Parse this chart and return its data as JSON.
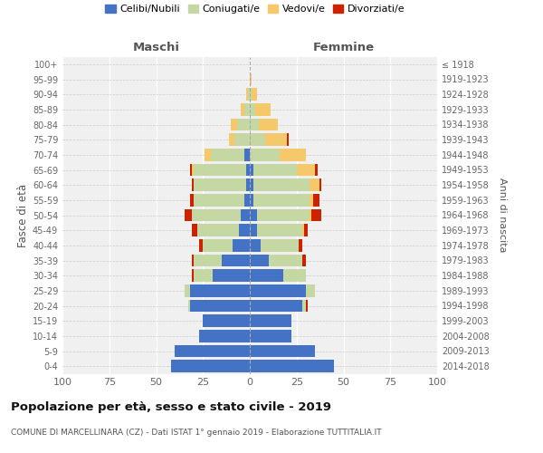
{
  "age_groups": [
    "0-4",
    "5-9",
    "10-14",
    "15-19",
    "20-24",
    "25-29",
    "30-34",
    "35-39",
    "40-44",
    "45-49",
    "50-54",
    "55-59",
    "60-64",
    "65-69",
    "70-74",
    "75-79",
    "80-84",
    "85-89",
    "90-94",
    "95-99",
    "100+"
  ],
  "birth_years": [
    "2014-2018",
    "2009-2013",
    "2004-2008",
    "1999-2003",
    "1994-1998",
    "1989-1993",
    "1984-1988",
    "1979-1983",
    "1974-1978",
    "1969-1973",
    "1964-1968",
    "1959-1963",
    "1954-1958",
    "1949-1953",
    "1944-1948",
    "1939-1943",
    "1934-1938",
    "1929-1933",
    "1924-1928",
    "1919-1923",
    "≤ 1918"
  ],
  "maschi": {
    "celibi": [
      42,
      40,
      27,
      25,
      32,
      32,
      20,
      15,
      9,
      6,
      5,
      3,
      2,
      2,
      3,
      0,
      0,
      0,
      0,
      0,
      0
    ],
    "coniugati": [
      0,
      0,
      0,
      0,
      1,
      3,
      10,
      15,
      16,
      22,
      26,
      27,
      28,
      28,
      18,
      8,
      7,
      3,
      1,
      0,
      0
    ],
    "vedovi": [
      0,
      0,
      0,
      0,
      0,
      0,
      0,
      0,
      0,
      0,
      0,
      0,
      0,
      1,
      3,
      3,
      3,
      2,
      1,
      0,
      0
    ],
    "divorziati": [
      0,
      0,
      0,
      0,
      0,
      0,
      1,
      1,
      2,
      3,
      4,
      2,
      1,
      1,
      0,
      0,
      0,
      0,
      0,
      0,
      0
    ]
  },
  "femmine": {
    "nubili": [
      45,
      35,
      22,
      22,
      28,
      30,
      18,
      10,
      6,
      4,
      4,
      2,
      2,
      2,
      0,
      0,
      0,
      0,
      0,
      0,
      0
    ],
    "coniugate": [
      0,
      0,
      0,
      0,
      2,
      5,
      12,
      18,
      20,
      24,
      28,
      30,
      30,
      23,
      16,
      8,
      5,
      3,
      1,
      0,
      0
    ],
    "vedove": [
      0,
      0,
      0,
      0,
      0,
      0,
      0,
      0,
      0,
      1,
      1,
      2,
      5,
      10,
      14,
      12,
      10,
      8,
      3,
      1,
      0
    ],
    "divorziate": [
      0,
      0,
      0,
      0,
      1,
      0,
      0,
      2,
      2,
      2,
      5,
      3,
      1,
      1,
      0,
      1,
      0,
      0,
      0,
      0,
      0
    ]
  },
  "colors": {
    "celibi": "#4472c4",
    "coniugati": "#c5d8a4",
    "vedovi": "#f5c96a",
    "divorziati": "#cc2200"
  },
  "legend_labels": [
    "Celibi/Nubili",
    "Coniugati/e",
    "Vedovi/e",
    "Divorziati/e"
  ],
  "title": "Popolazione per età, sesso e stato civile - 2019",
  "subtitle": "COMUNE DI MARCELLINARA (CZ) - Dati ISTAT 1° gennaio 2019 - Elaborazione TUTTITALIA.IT",
  "xlabel_left": "Maschi",
  "xlabel_right": "Femmine",
  "ylabel_left": "Fasce di età",
  "ylabel_right": "Anni di nascita",
  "xlim": 100,
  "background_color": "#f0f0f0"
}
